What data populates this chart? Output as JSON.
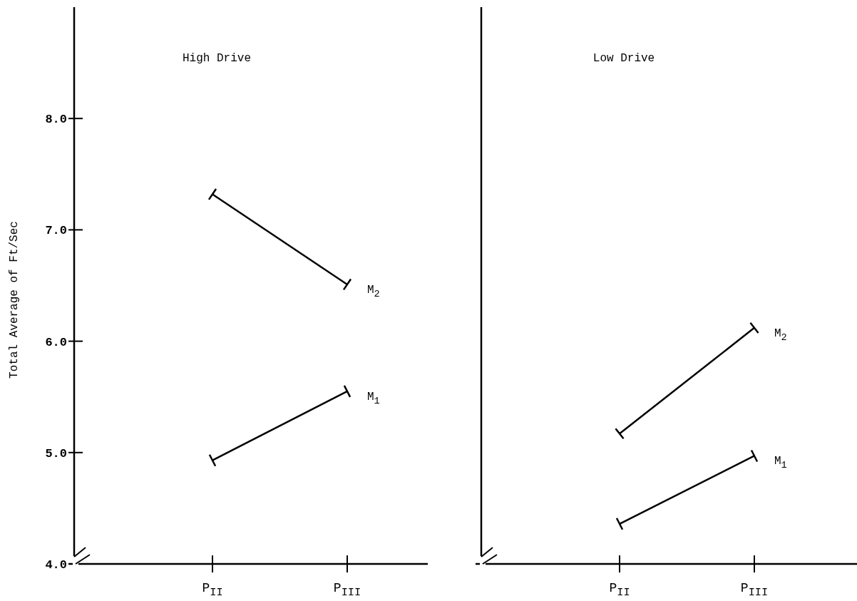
{
  "chart_data": [
    {
      "type": "line",
      "title": "High Drive",
      "ylabel": "Total Average of Ft/Sec",
      "categories": [
        "P$_{II}$",
        "P$_{III}$"
      ],
      "ylim": [
        4,
        9
      ],
      "yticks": [
        {
          "value": 4,
          "label": "4.0"
        },
        {
          "value": 5,
          "label": "5.0"
        },
        {
          "value": 6,
          "label": "6.0"
        },
        {
          "value": 7,
          "label": "7.0"
        },
        {
          "value": 8,
          "label": "8.0"
        }
      ],
      "marker": "cross",
      "line_style": "solid",
      "grid": false,
      "legend": false,
      "series": [
        {
          "name": "M$_{2}$",
          "color": "#000000",
          "values": [
            7.32,
            6.51
          ]
        },
        {
          "name": "M$_{1}$",
          "color": "#000000",
          "values": [
            4.93,
            5.55
          ]
        }
      ]
    },
    {
      "type": "line",
      "title": "Low Drive",
      "categories": [
        "P$_{II}$",
        "P$_{III}$"
      ],
      "ylim": [
        4,
        9
      ],
      "tick_labels": "x",
      "marker": "cross",
      "line_style": "solid",
      "grid": false,
      "legend": false,
      "series": [
        {
          "name": "M$_{2}$",
          "color": "#000000",
          "values": [
            5.17,
            6.12
          ]
        },
        {
          "name": "M$_{1}$",
          "color": "#000000",
          "values": [
            4.36,
            4.97
          ]
        }
      ]
    }
  ]
}
